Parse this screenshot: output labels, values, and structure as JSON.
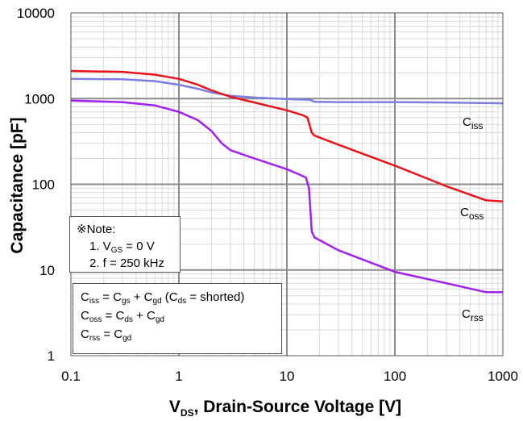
{
  "chart_data": {
    "type": "line",
    "xscale": "log",
    "yscale": "log",
    "xlim": [
      0.1,
      1000
    ],
    "ylim": [
      1,
      10000
    ],
    "x_ticks": [
      "0.1",
      "1",
      "10",
      "100",
      "1000"
    ],
    "y_ticks": [
      "1",
      "10",
      "100",
      "1000",
      "10000"
    ],
    "xlabel": {
      "main": "V",
      "sub": "DS",
      "rest": ", Drain-Source Voltage [V]"
    },
    "ylabel": "Capacitance [pF]",
    "series": [
      {
        "name": "Ciss",
        "label_main": "C",
        "label_sub": "iss",
        "color": "#7b7fe0",
        "points": [
          [
            0.1,
            1700
          ],
          [
            0.3,
            1680
          ],
          [
            0.6,
            1600
          ],
          [
            1.0,
            1450
          ],
          [
            1.5,
            1300
          ],
          [
            2,
            1180
          ],
          [
            3,
            1080
          ],
          [
            5,
            1030
          ],
          [
            8,
            1000
          ],
          [
            12,
            980
          ],
          [
            16,
            970
          ],
          [
            17,
            950
          ],
          [
            18,
            920
          ],
          [
            30,
            910
          ],
          [
            100,
            910
          ],
          [
            300,
            900
          ],
          [
            1000,
            880
          ]
        ]
      },
      {
        "name": "Coss",
        "label_main": "C",
        "label_sub": "oss",
        "color": "#e8141a",
        "points": [
          [
            0.1,
            2100
          ],
          [
            0.3,
            2050
          ],
          [
            0.6,
            1900
          ],
          [
            1.0,
            1700
          ],
          [
            1.5,
            1450
          ],
          [
            2,
            1250
          ],
          [
            3,
            1050
          ],
          [
            5,
            900
          ],
          [
            10,
            730
          ],
          [
            14,
            640
          ],
          [
            15.5,
            600
          ],
          [
            17,
            400
          ],
          [
            18,
            370
          ],
          [
            30,
            290
          ],
          [
            100,
            165
          ],
          [
            300,
            95
          ],
          [
            700,
            65
          ],
          [
            1000,
            63
          ]
        ]
      },
      {
        "name": "Crss",
        "label_main": "C",
        "label_sub": "rss",
        "color": "#a020f0",
        "points": [
          [
            0.1,
            950
          ],
          [
            0.3,
            910
          ],
          [
            0.6,
            830
          ],
          [
            1.0,
            700
          ],
          [
            1.5,
            560
          ],
          [
            2,
            420
          ],
          [
            2.5,
            300
          ],
          [
            3,
            250
          ],
          [
            5,
            200
          ],
          [
            10,
            150
          ],
          [
            13,
            130
          ],
          [
            15,
            120
          ],
          [
            16,
            90
          ],
          [
            17,
            28
          ],
          [
            18,
            24
          ],
          [
            30,
            17
          ],
          [
            100,
            9.5
          ],
          [
            300,
            7
          ],
          [
            700,
            5.5
          ],
          [
            1000,
            5.5
          ]
        ]
      }
    ]
  },
  "note": {
    "title": "※Note:",
    "item1_prefix": "1. V",
    "item1_sub": "GS",
    "item1_rest": " = 0 V",
    "item2": "2. f = 250 kHz"
  },
  "formula": {
    "line1": {
      "c": "C",
      "s": "iss",
      "eq": " = C",
      "s2": "gs",
      "plus": " + C",
      "s3": "gd",
      "paren": " (C",
      "s4": "ds",
      "tail": " = shorted)"
    },
    "line2": {
      "c": "C",
      "s": "oss",
      "eq": " = C",
      "s2": "ds",
      "plus": " + C",
      "s3": "gd"
    },
    "line3": {
      "c": "C",
      "s": "rss",
      "eq": " = C",
      "s2": "gd"
    }
  }
}
